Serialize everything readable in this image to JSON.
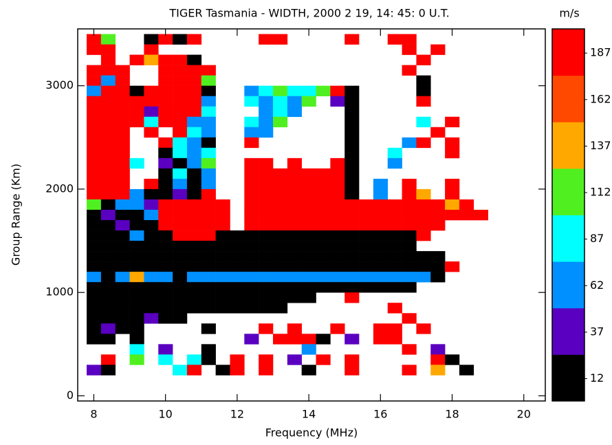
{
  "chart_data": {
    "type": "heatmap",
    "title": "TIGER Tasmania - WIDTH, 2000 2 19, 14: 45: 0 U.T.",
    "x_label": "Frequency (MHz)",
    "y_label": "Group Range (Km)",
    "xlim": [
      7.55,
      20.6
    ],
    "ylim": [
      -50,
      3550
    ],
    "xticks": [
      8,
      10,
      12,
      14,
      16,
      18,
      20
    ],
    "yticks": [
      0,
      1000,
      2000,
      3000
    ],
    "colorbar": {
      "title": "m/s",
      "lim": [
        0,
        200
      ],
      "ticks": [
        12,
        37,
        62,
        87,
        112,
        137,
        162,
        187
      ],
      "colors": [
        "#000000",
        "#5a00c0",
        "#0090ff",
        "#00ffff",
        "#50f020",
        "#ffa800",
        "#ff4800",
        "#ff0000"
      ]
    },
    "x": [
      8,
      8.4,
      8.8,
      9.2,
      9.6,
      10,
      10.4,
      10.8,
      11.2,
      11.6,
      12,
      12.4,
      12.8,
      13.2,
      13.6,
      14,
      14.4,
      14.8,
      15.2,
      15.6,
      16,
      16.4,
      16.8,
      17.2,
      17.6,
      18,
      18.4,
      18.8
    ],
    "y": [
      3450,
      3350,
      3250,
      3150,
      3050,
      2950,
      2850,
      2750,
      2650,
      2550,
      2450,
      2350,
      2250,
      2150,
      2050,
      1950,
      1850,
      1750,
      1650,
      1550,
      1450,
      1350,
      1250,
      1150,
      1050,
      950,
      850,
      750,
      650,
      550,
      450,
      350,
      250
    ],
    "z": [
      [
        187,
        112,
        null,
        null,
        12,
        187,
        12,
        187,
        null,
        null,
        null,
        null,
        187,
        187,
        null,
        null,
        null,
        null,
        187,
        null,
        null,
        187,
        187,
        null,
        null,
        null,
        null,
        null
      ],
      [
        187,
        187,
        null,
        null,
        187,
        null,
        null,
        null,
        null,
        null,
        null,
        null,
        null,
        null,
        null,
        null,
        null,
        null,
        null,
        null,
        null,
        null,
        187,
        null,
        187,
        null,
        null,
        null
      ],
      [
        null,
        187,
        null,
        187,
        137,
        187,
        187,
        12,
        null,
        null,
        null,
        null,
        null,
        null,
        null,
        null,
        null,
        null,
        null,
        null,
        null,
        null,
        null,
        187,
        null,
        null,
        null,
        null
      ],
      [
        187,
        187,
        187,
        null,
        null,
        187,
        187,
        187,
        187,
        null,
        null,
        null,
        null,
        null,
        null,
        null,
        null,
        null,
        null,
        null,
        null,
        null,
        187,
        null,
        null,
        null,
        null,
        null
      ],
      [
        187,
        62,
        187,
        null,
        null,
        187,
        187,
        187,
        112,
        null,
        null,
        null,
        null,
        null,
        null,
        null,
        null,
        null,
        null,
        null,
        null,
        null,
        null,
        12,
        null,
        null,
        null,
        null
      ],
      [
        62,
        187,
        187,
        12,
        187,
        187,
        187,
        187,
        12,
        null,
        null,
        62,
        87,
        112,
        87,
        87,
        112,
        187,
        12,
        null,
        null,
        null,
        null,
        12,
        null,
        null,
        null,
        null
      ],
      [
        187,
        187,
        187,
        187,
        187,
        187,
        187,
        187,
        62,
        null,
        null,
        87,
        62,
        87,
        62,
        112,
        null,
        37,
        12,
        null,
        null,
        null,
        null,
        187,
        null,
        null,
        null,
        null
      ],
      [
        187,
        187,
        187,
        187,
        37,
        187,
        187,
        187,
        87,
        null,
        null,
        null,
        62,
        87,
        62,
        null,
        null,
        null,
        12,
        null,
        null,
        null,
        null,
        null,
        null,
        null,
        null,
        null
      ],
      [
        187,
        187,
        187,
        187,
        87,
        187,
        187,
        62,
        62,
        null,
        null,
        87,
        62,
        112,
        null,
        null,
        null,
        null,
        12,
        null,
        null,
        null,
        null,
        87,
        null,
        187,
        null,
        null
      ],
      [
        187,
        187,
        187,
        null,
        187,
        null,
        187,
        87,
        62,
        null,
        null,
        62,
        62,
        null,
        null,
        null,
        null,
        null,
        12,
        null,
        null,
        null,
        null,
        null,
        187,
        null,
        null,
        null
      ],
      [
        187,
        187,
        187,
        null,
        null,
        187,
        87,
        62,
        12,
        null,
        null,
        187,
        null,
        null,
        null,
        null,
        null,
        null,
        12,
        null,
        null,
        null,
        62,
        187,
        null,
        187,
        null,
        null
      ],
      [
        187,
        187,
        187,
        null,
        null,
        12,
        87,
        62,
        87,
        null,
        null,
        null,
        null,
        null,
        null,
        null,
        null,
        null,
        12,
        null,
        null,
        87,
        null,
        null,
        null,
        187,
        null,
        null
      ],
      [
        187,
        187,
        187,
        87,
        null,
        37,
        12,
        62,
        112,
        null,
        null,
        187,
        187,
        null,
        187,
        null,
        null,
        187,
        12,
        null,
        null,
        62,
        null,
        null,
        null,
        null,
        null,
        null
      ],
      [
        187,
        187,
        187,
        null,
        null,
        12,
        87,
        12,
        62,
        null,
        null,
        187,
        187,
        187,
        187,
        187,
        187,
        187,
        12,
        null,
        null,
        null,
        null,
        null,
        null,
        null,
        null,
        null
      ],
      [
        187,
        187,
        187,
        null,
        187,
        12,
        62,
        12,
        62,
        null,
        null,
        187,
        187,
        187,
        187,
        187,
        187,
        187,
        12,
        null,
        62,
        null,
        187,
        null,
        null,
        187,
        null,
        null
      ],
      [
        187,
        187,
        187,
        62,
        12,
        12,
        37,
        12,
        187,
        null,
        null,
        187,
        187,
        187,
        187,
        187,
        187,
        187,
        12,
        null,
        62,
        null,
        187,
        137,
        null,
        187,
        null,
        null
      ],
      [
        112,
        12,
        62,
        62,
        37,
        187,
        187,
        187,
        187,
        187,
        null,
        187,
        187,
        187,
        187,
        187,
        187,
        187,
        187,
        187,
        187,
        187,
        187,
        187,
        187,
        137,
        187,
        null
      ],
      [
        12,
        37,
        12,
        12,
        62,
        187,
        187,
        187,
        187,
        187,
        null,
        187,
        187,
        187,
        187,
        187,
        187,
        187,
        187,
        187,
        187,
        187,
        187,
        187,
        187,
        187,
        187,
        187
      ],
      [
        12,
        12,
        37,
        12,
        12,
        187,
        187,
        187,
        187,
        187,
        null,
        187,
        187,
        187,
        187,
        187,
        187,
        187,
        187,
        187,
        187,
        187,
        187,
        187,
        187,
        null,
        null,
        null
      ],
      [
        12,
        12,
        12,
        62,
        12,
        12,
        187,
        187,
        187,
        12,
        12,
        12,
        12,
        12,
        12,
        12,
        12,
        12,
        12,
        12,
        12,
        12,
        12,
        187,
        null,
        null,
        null,
        null
      ],
      [
        12,
        12,
        12,
        12,
        12,
        12,
        12,
        12,
        12,
        12,
        12,
        12,
        12,
        12,
        12,
        12,
        12,
        12,
        12,
        12,
        12,
        12,
        12,
        null,
        null,
        null,
        null,
        null
      ],
      [
        12,
        12,
        12,
        12,
        12,
        12,
        12,
        12,
        12,
        12,
        12,
        12,
        12,
        12,
        12,
        12,
        12,
        12,
        12,
        12,
        12,
        12,
        12,
        12,
        12,
        null,
        null,
        null
      ],
      [
        12,
        12,
        12,
        12,
        12,
        12,
        12,
        12,
        12,
        12,
        12,
        12,
        12,
        12,
        12,
        12,
        12,
        12,
        12,
        12,
        12,
        12,
        12,
        12,
        12,
        187,
        null,
        null
      ],
      [
        62,
        12,
        62,
        137,
        62,
        62,
        12,
        62,
        62,
        62,
        62,
        62,
        62,
        62,
        62,
        62,
        62,
        62,
        62,
        62,
        62,
        62,
        62,
        62,
        12,
        null,
        null,
        null
      ],
      [
        12,
        12,
        12,
        12,
        12,
        12,
        12,
        12,
        12,
        12,
        12,
        12,
        12,
        12,
        12,
        12,
        12,
        12,
        12,
        12,
        12,
        12,
        12,
        null,
        null,
        null,
        null,
        null
      ],
      [
        12,
        12,
        12,
        12,
        12,
        12,
        12,
        12,
        12,
        12,
        12,
        12,
        12,
        12,
        12,
        12,
        null,
        null,
        187,
        null,
        null,
        null,
        null,
        null,
        null,
        null,
        null,
        null
      ],
      [
        12,
        12,
        12,
        12,
        12,
        12,
        12,
        12,
        12,
        12,
        12,
        12,
        12,
        12,
        null,
        null,
        null,
        null,
        null,
        null,
        null,
        187,
        null,
        null,
        null,
        null,
        null,
        null
      ],
      [
        12,
        12,
        12,
        12,
        37,
        12,
        12,
        null,
        null,
        null,
        null,
        null,
        null,
        null,
        null,
        null,
        null,
        null,
        null,
        null,
        null,
        null,
        187,
        null,
        null,
        null,
        null,
        null
      ],
      [
        12,
        37,
        12,
        12,
        null,
        null,
        null,
        null,
        12,
        null,
        null,
        null,
        187,
        null,
        187,
        null,
        null,
        187,
        null,
        null,
        187,
        187,
        null,
        187,
        null,
        null,
        null,
        null
      ],
      [
        12,
        12,
        null,
        12,
        null,
        null,
        null,
        null,
        null,
        null,
        null,
        37,
        null,
        187,
        187,
        187,
        12,
        null,
        37,
        null,
        187,
        187,
        null,
        null,
        null,
        null,
        null,
        null
      ],
      [
        null,
        null,
        null,
        87,
        null,
        37,
        null,
        null,
        12,
        null,
        null,
        null,
        null,
        null,
        null,
        62,
        null,
        null,
        null,
        null,
        null,
        null,
        187,
        null,
        37,
        null,
        null,
        null
      ],
      [
        null,
        187,
        null,
        112,
        null,
        87,
        null,
        87,
        12,
        null,
        187,
        null,
        187,
        null,
        37,
        null,
        187,
        null,
        187,
        null,
        null,
        null,
        null,
        null,
        187,
        12,
        null,
        null
      ],
      [
        37,
        12,
        null,
        null,
        null,
        null,
        87,
        187,
        null,
        12,
        187,
        null,
        187,
        null,
        null,
        12,
        null,
        null,
        187,
        null,
        null,
        null,
        187,
        null,
        137,
        null,
        12,
        null
      ]
    ]
  }
}
